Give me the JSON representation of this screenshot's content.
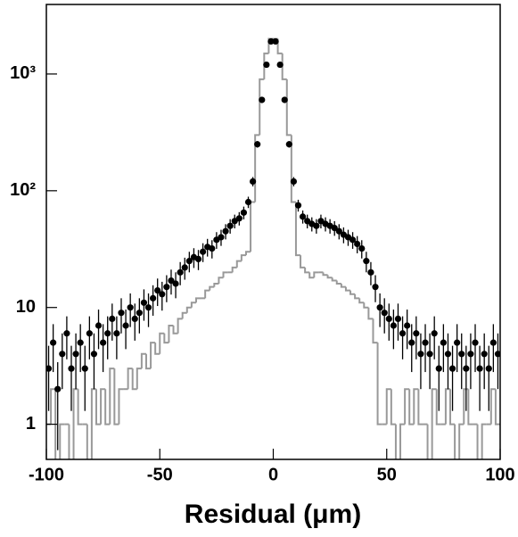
{
  "chart_data": {
    "type": "scatter",
    "x_label": "Residual (μm)",
    "log_y": true,
    "xlim": [
      -100,
      100
    ],
    "xticks": [
      -100,
      -50,
      0,
      50,
      100
    ],
    "ylim": [
      0.5,
      3940
    ],
    "yticks": [
      1,
      10,
      {
        "value": 100,
        "label": "10²"
      },
      {
        "value": 1000,
        "label": "10³"
      }
    ],
    "series": [
      {
        "color": "#000000",
        "x": [
          -99,
          -97,
          -95,
          -93,
          -91,
          -89,
          -87,
          -85,
          -83,
          -81,
          -79,
          -77,
          -75,
          -73,
          -71,
          -69,
          -67,
          -65,
          -63,
          -61,
          -59,
          -57,
          -55,
          -53,
          -51,
          -49,
          -47,
          -45,
          -43,
          -41,
          -39,
          -37,
          -35,
          -33,
          -31,
          -29,
          -27,
          -25,
          -23,
          -21,
          -19,
          -17,
          -15,
          -13,
          -11,
          -9,
          -7,
          -5,
          -3,
          -1,
          1,
          3,
          5,
          7,
          9,
          11,
          13,
          15,
          17,
          19,
          21,
          23,
          25,
          27,
          29,
          31,
          33,
          35,
          37,
          39,
          41,
          43,
          45,
          47,
          49,
          51,
          53,
          55,
          57,
          59,
          61,
          63,
          65,
          67,
          69,
          71,
          73,
          75,
          77,
          79,
          81,
          83,
          85,
          87,
          89,
          91,
          93,
          95,
          97,
          99
        ],
        "values": [
          3,
          5,
          2,
          4,
          6,
          3,
          4,
          5,
          3,
          6,
          4,
          7,
          5,
          6,
          8,
          6,
          9,
          7,
          10,
          8,
          9,
          11,
          10,
          12,
          14,
          13,
          15,
          17,
          16,
          20,
          22,
          25,
          27,
          26,
          30,
          33,
          32,
          38,
          40,
          45,
          50,
          55,
          58,
          65,
          80,
          120,
          250,
          600,
          1200,
          1900,
          1900,
          1200,
          600,
          250,
          120,
          75,
          60,
          55,
          52,
          50,
          55,
          52,
          50,
          48,
          45,
          42,
          40,
          38,
          35,
          32,
          25,
          20,
          15,
          10,
          9,
          8,
          7,
          8,
          6,
          7,
          5,
          6,
          4,
          5,
          4,
          6,
          3,
          5,
          4,
          3,
          5,
          4,
          3,
          4,
          5,
          3,
          4,
          3,
          5,
          4
        ],
        "errors": [
          1.7,
          2.2,
          1.4,
          2,
          2.4,
          1.7,
          2,
          2.2,
          1.7,
          2.4,
          2,
          2.6,
          2.2,
          2.4,
          2.8,
          2.4,
          3,
          2.6,
          3.2,
          2.8,
          3,
          3.3,
          3.2,
          3.5,
          3.7,
          3.6,
          3.9,
          4.1,
          4,
          4.5,
          4.7,
          5,
          5.2,
          5.1,
          5.5,
          5.7,
          5.7,
          6.2,
          6.3,
          6.7,
          7.1,
          7.4,
          7.6,
          8.1,
          8.9,
          11,
          15.8,
          24.5,
          34.6,
          43.6,
          43.6,
          34.6,
          24.5,
          15.8,
          11,
          8.7,
          7.7,
          7.4,
          7.2,
          7.1,
          7.4,
          7.2,
          7.1,
          6.9,
          6.7,
          6.5,
          6.3,
          6.2,
          5.9,
          5.7,
          5,
          4.5,
          3.9,
          3.2,
          3,
          2.8,
          2.6,
          2.8,
          2.4,
          2.6,
          2.2,
          2.4,
          2,
          2.2,
          2,
          2.4,
          1.7,
          2.2,
          2,
          1.7,
          2.2,
          2,
          1.7,
          2,
          2.2,
          1.7,
          2,
          1.7,
          2.2,
          2
        ]
      },
      {
        "type": "histogram",
        "color": "#999999",
        "bins": [
          -100,
          -98,
          -96,
          -94,
          -92,
          -90,
          -88,
          -86,
          -84,
          -82,
          -80,
          -78,
          -76,
          -74,
          -72,
          -70,
          -68,
          -66,
          -64,
          -62,
          -60,
          -58,
          -56,
          -54,
          -52,
          -50,
          -48,
          -46,
          -44,
          -42,
          -40,
          -38,
          -36,
          -34,
          -32,
          -30,
          -28,
          -26,
          -24,
          -22,
          -20,
          -18,
          -16,
          -14,
          -12,
          -10,
          -8,
          -6,
          -4,
          -2,
          0,
          2,
          4,
          6,
          8,
          10,
          12,
          14,
          16,
          18,
          20,
          22,
          24,
          26,
          28,
          30,
          32,
          34,
          36,
          38,
          40,
          42,
          44,
          46,
          48,
          50,
          52,
          54,
          56,
          58,
          60,
          62,
          64,
          66,
          68,
          70,
          72,
          74,
          76,
          78,
          80,
          82,
          84,
          86,
          88,
          90,
          92,
          94,
          96,
          98,
          100
        ],
        "counts": [
          1,
          2,
          0,
          1,
          1,
          0,
          2,
          1,
          1,
          0,
          2,
          1,
          2,
          1,
          3,
          1,
          2,
          2,
          3,
          2,
          3,
          4,
          3,
          5,
          4,
          6,
          5,
          7,
          6,
          8,
          9,
          10,
          11,
          12,
          12,
          14,
          15,
          16,
          18,
          20,
          20,
          22,
          25,
          28,
          30,
          80,
          300,
          900,
          1500,
          2000,
          2000,
          1500,
          900,
          300,
          80,
          28,
          22,
          20,
          18,
          20,
          20,
          19,
          18,
          17,
          16,
          15,
          14,
          13,
          12,
          11,
          10,
          8,
          5,
          1,
          1,
          2,
          1,
          0,
          1,
          2,
          1,
          2,
          1,
          1,
          0,
          2,
          1,
          1,
          2,
          1,
          0,
          1,
          2,
          1,
          1,
          0,
          1,
          1,
          2,
          1
        ]
      }
    ]
  }
}
